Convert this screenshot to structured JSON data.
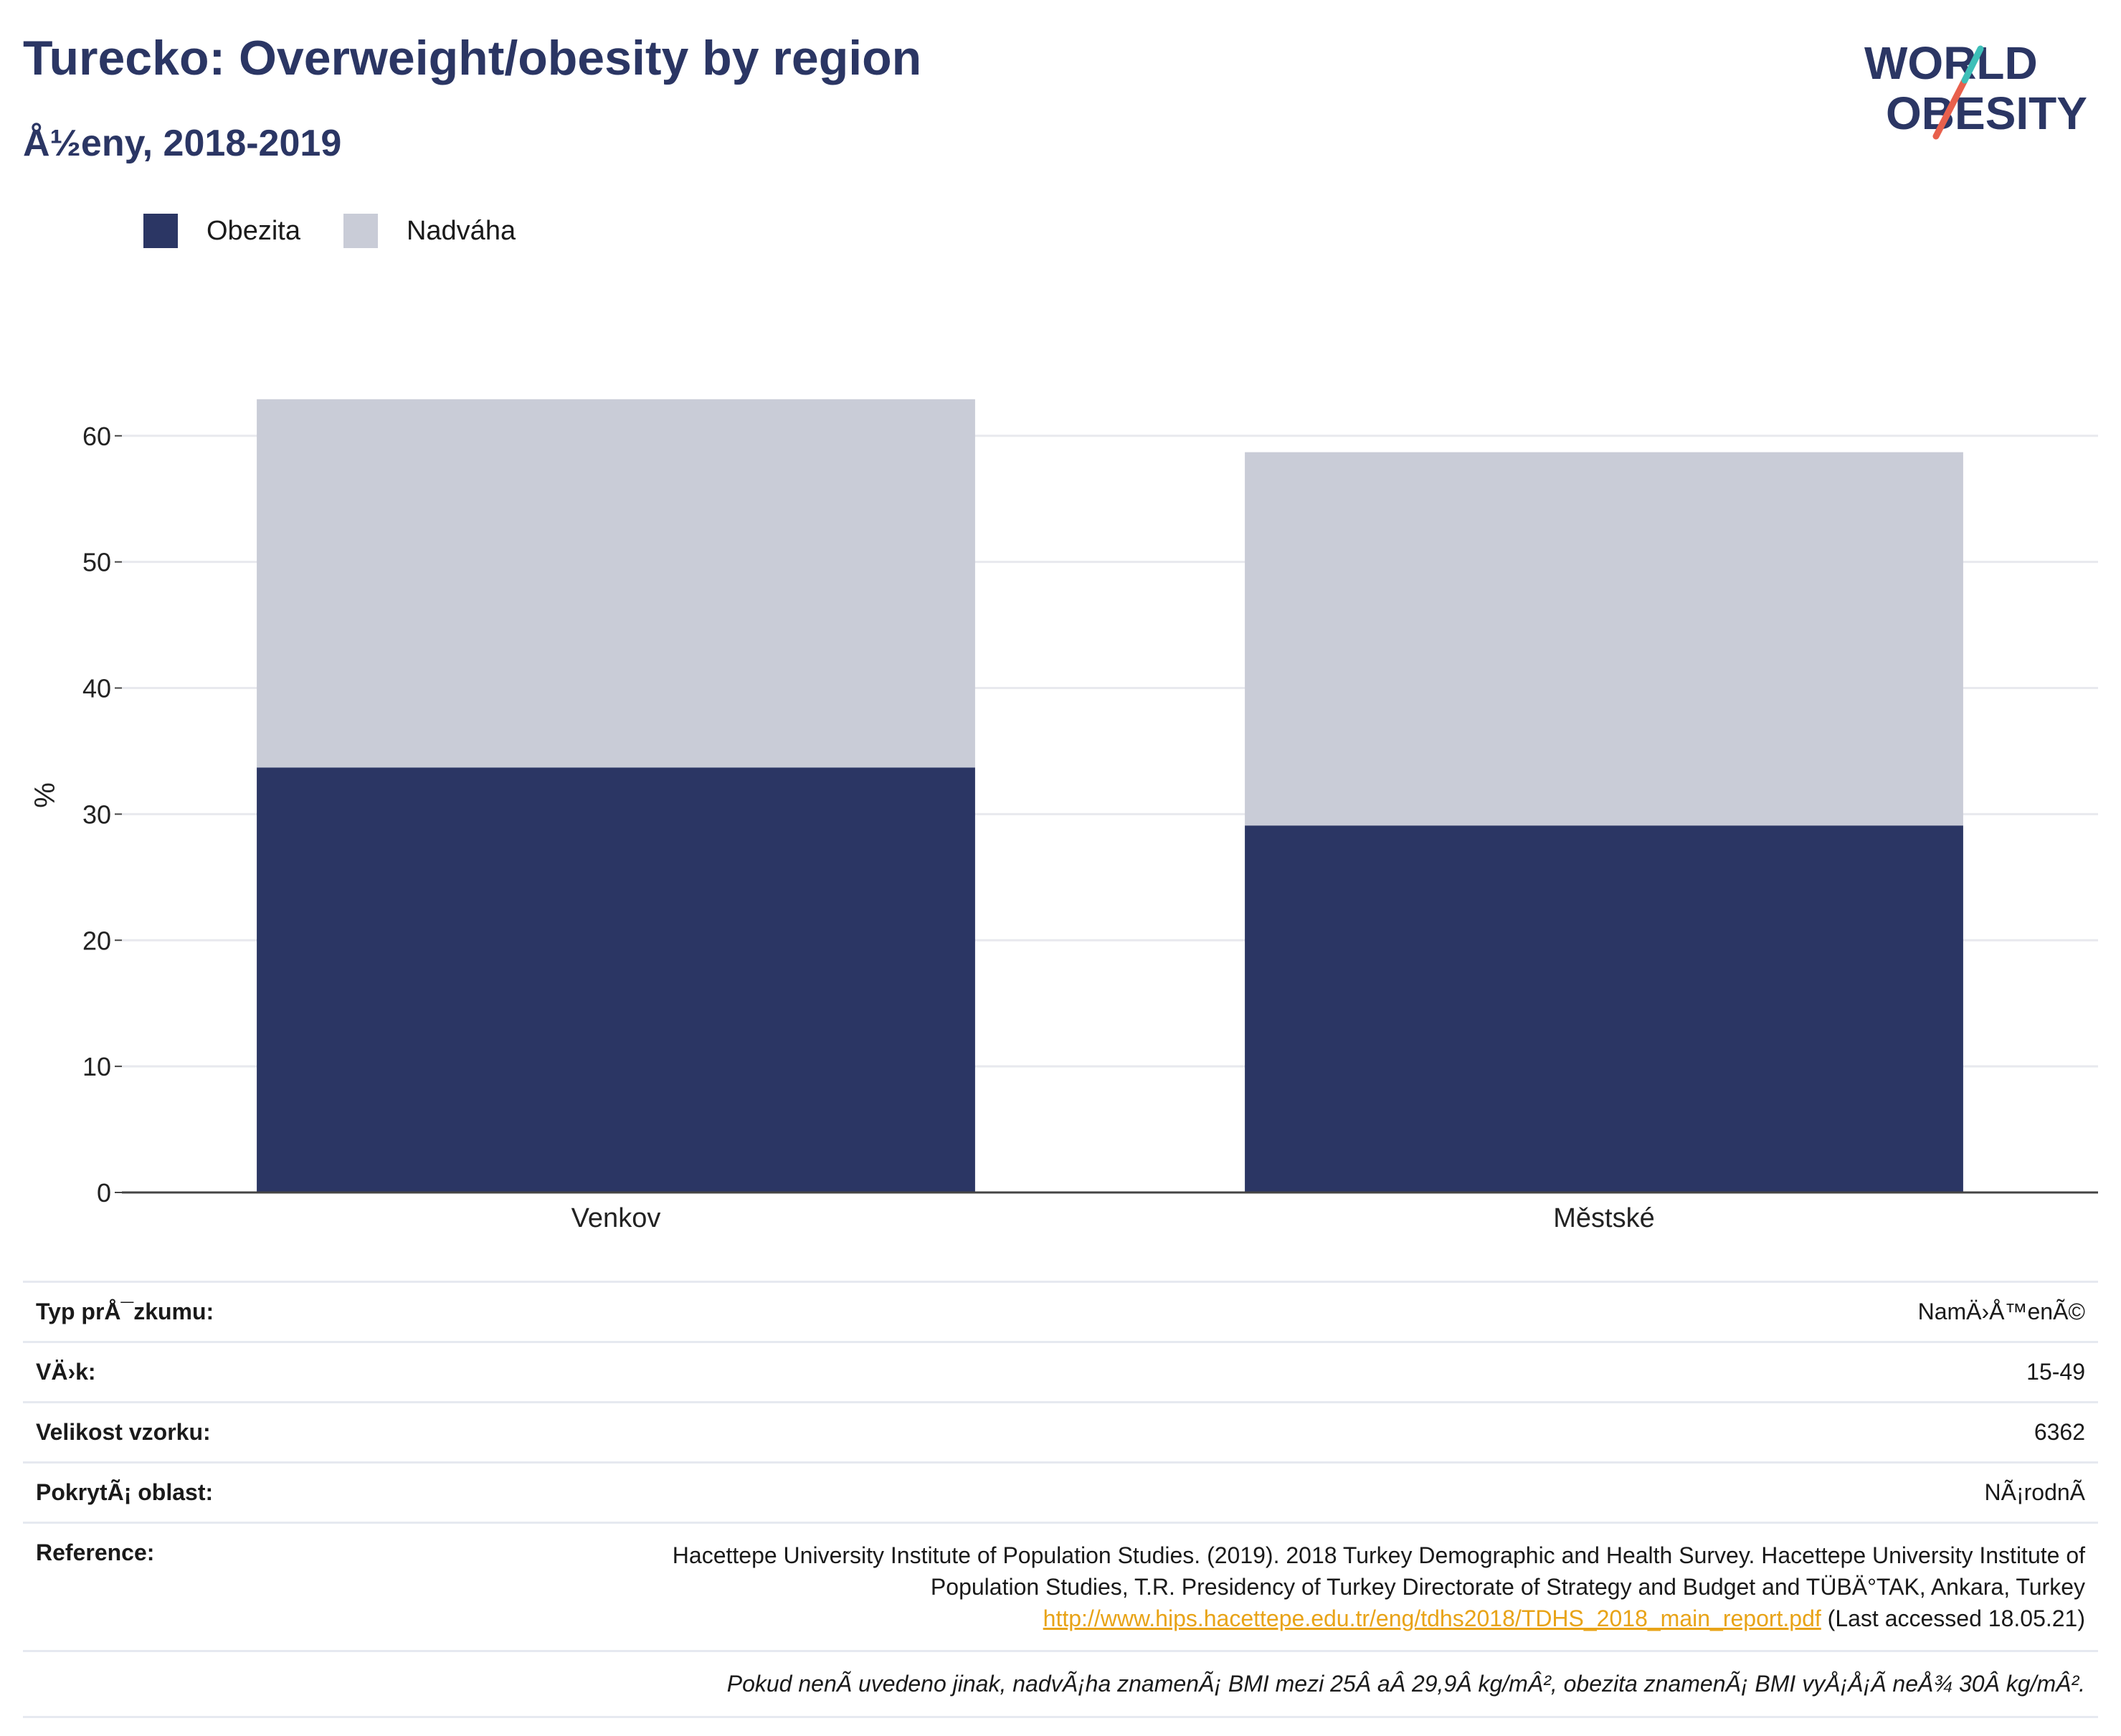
{
  "header": {
    "title": "Turecko: Overweight/obesity by region",
    "subtitle": "Å½eny, 2018-2019"
  },
  "logo": {
    "line1": "WORLD",
    "line2": "OBESITY"
  },
  "colors": {
    "obezita": "#2b3664",
    "nadvaha": "#c9ccd7",
    "title": "#2b3664",
    "link": "#e8a317",
    "logo_stroke_teal": "#3dbfb8",
    "logo_stroke_red": "#e8604c"
  },
  "legend": [
    {
      "label": "Obezita",
      "color": "#2b3664"
    },
    {
      "label": "Nadváha",
      "color": "#c9ccd7"
    }
  ],
  "chart_data": {
    "type": "bar",
    "stacked": true,
    "categories": [
      "Venkov",
      "Městské"
    ],
    "series": [
      {
        "name": "Obezita",
        "values": [
          33.7,
          29.1
        ]
      },
      {
        "name": "Nadváha",
        "values": [
          29.2,
          29.6
        ]
      }
    ],
    "ylabel": "%",
    "ylim": [
      0,
      63
    ],
    "yticks": [
      0,
      10,
      20,
      30,
      40,
      50,
      60
    ],
    "grid": true,
    "legend_position": "top-left"
  },
  "meta": {
    "survey_type_label": "Typ prÅ¯zkumu:",
    "survey_type_value": "NamÄ›Å™enÃ©",
    "age_label": "VÄ›k:",
    "age_value": "15-49",
    "sample_label": "Velikost vzorku:",
    "sample_value": "6362",
    "coverage_label": "PokrytÃ¡ oblast:",
    "coverage_value": "NÃ¡rodnÃ",
    "reference_label": "Reference:",
    "reference_text": "Hacettepe University Institute of Population Studies. (2019). 2018 Turkey Demographic and Health Survey. Hacettepe University Institute of Population Studies, T.R. Presidency of Turkey Directorate of Strategy and Budget and TÜBÄ°TAK, Ankara, Turkey",
    "reference_link": "http://www.hips.hacettepe.edu.tr/eng/tdhs2018/TDHS_2018_main_report.pdf",
    "reference_accessed": "(Last accessed 18.05.21)",
    "note": "Pokud nenÃ uvedeno jinak, nadvÃ¡ha znamenÃ¡ BMI mezi 25Â aÂ 29,9Â kg/mÂ², obezita znamenÃ¡ BMI vyÅ¡Å¡Ã neÅ¾ 30Â kg/mÂ²."
  }
}
